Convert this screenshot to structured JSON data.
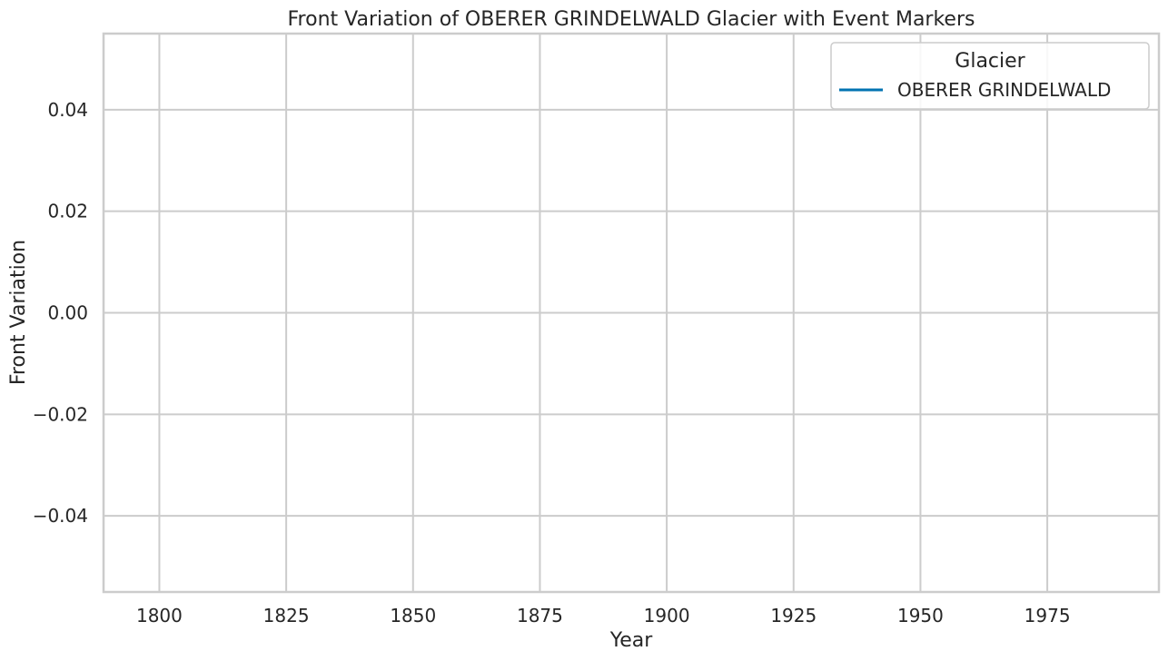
{
  "chart_data": {
    "type": "line",
    "title": "Front Variation of OBERER GRINDELWALD Glacier with Event Markers",
    "xlabel": "Year",
    "ylabel": "Front Variation",
    "xlim": [
      1789,
      1997
    ],
    "ylim": [
      -0.055,
      0.055
    ],
    "xticks": [
      1800,
      1825,
      1850,
      1875,
      1900,
      1925,
      1950,
      1975
    ],
    "yticks": [
      0.04,
      0.02,
      0.0,
      -0.02,
      -0.04
    ],
    "ytick_labels": [
      "0.04",
      "0.02",
      "0.00",
      "−0.02",
      "−0.04"
    ],
    "grid": true,
    "legend": {
      "title": "Glacier",
      "placement": "top-right",
      "entries": [
        {
          "name": "OBERER GRINDELWALD",
          "color": "#0173b2"
        }
      ]
    },
    "series": [
      {
        "name": "OBERER GRINDELWALD",
        "color": "#0173b2",
        "x": [],
        "y": []
      }
    ],
    "colors": {
      "axis": "#cccccc",
      "text": "#262626",
      "background": "#ffffff"
    }
  }
}
